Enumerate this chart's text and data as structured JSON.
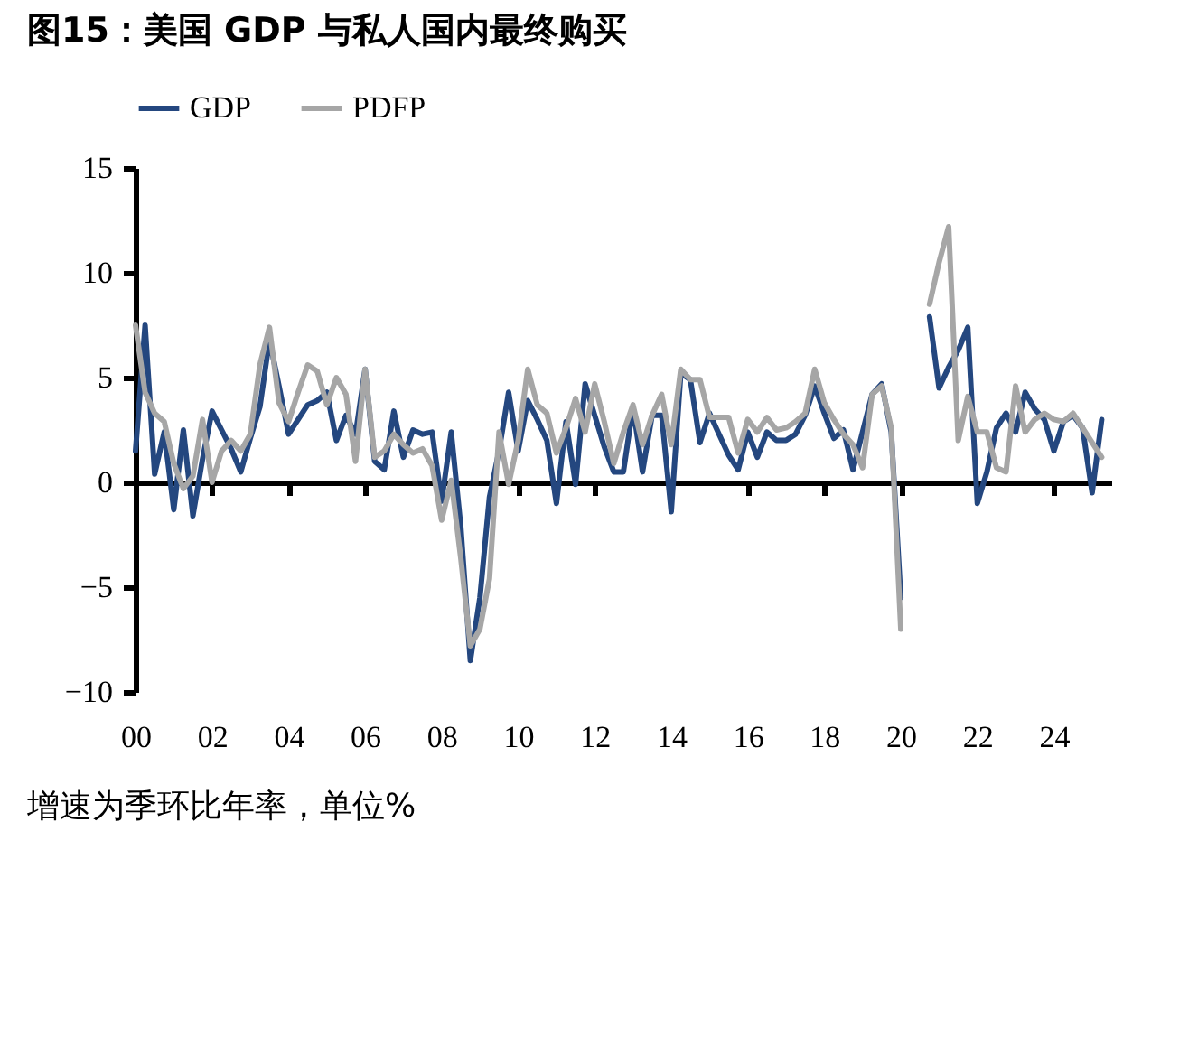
{
  "chart_data": {
    "type": "line",
    "title": "图15：美国 GDP 与私人国内最终购买",
    "annotations": [
      "增速为季环比年率，单位%"
    ],
    "x": [
      2000,
      2000.25,
      2000.5,
      2000.75,
      2001,
      2001.25,
      2001.5,
      2001.75,
      2002,
      2002.25,
      2002.5,
      2002.75,
      2003,
      2003.25,
      2003.5,
      2003.75,
      2004,
      2004.25,
      2004.5,
      2004.75,
      2005,
      2005.25,
      2005.5,
      2005.75,
      2006,
      2006.25,
      2006.5,
      2006.75,
      2007,
      2007.25,
      2007.5,
      2007.75,
      2008,
      2008.25,
      2008.5,
      2008.75,
      2009,
      2009.25,
      2009.5,
      2009.75,
      2010,
      2010.25,
      2010.5,
      2010.75,
      2011,
      2011.25,
      2011.5,
      2011.75,
      2012,
      2012.25,
      2012.5,
      2012.75,
      2013,
      2013.25,
      2013.5,
      2013.75,
      2014,
      2014.25,
      2014.5,
      2014.75,
      2015,
      2015.25,
      2015.5,
      2015.75,
      2016,
      2016.25,
      2016.5,
      2016.75,
      2017,
      2017.25,
      2017.5,
      2017.75,
      2018,
      2018.25,
      2018.5,
      2018.75,
      2019,
      2019.25,
      2019.5,
      2019.75,
      2020,
      2020.25,
      2020.5,
      2020.75,
      2021,
      2021.25,
      2021.5,
      2021.75,
      2022,
      2022.25,
      2022.5,
      2022.75,
      2023,
      2023.25,
      2023.5,
      2023.75,
      2024,
      2024.25,
      2024.5,
      2024.75,
      2025,
      2025.25
    ],
    "series": [
      {
        "name": "GDP",
        "color": "#24477f",
        "values": [
          1.5,
          7.5,
          0.4,
          2.4,
          -1.3,
          2.5,
          -1.6,
          1.1,
          3.4,
          2.5,
          1.6,
          0.5,
          2.1,
          3.6,
          6.8,
          4.6,
          2.3,
          3.0,
          3.7,
          3.9,
          4.3,
          2.0,
          3.2,
          2.3,
          5.4,
          1.0,
          0.6,
          3.4,
          1.2,
          2.5,
          2.3,
          2.4,
          -0.9,
          2.4,
          -2.1,
          -8.5,
          -5.5,
          -0.7,
          1.5,
          4.3,
          1.5,
          3.9,
          3.0,
          2.0,
          -1.0,
          2.9,
          -0.1,
          4.7,
          3.2,
          1.7,
          0.5,
          0.5,
          3.6,
          0.5,
          3.2,
          3.2,
          -1.4,
          5.2,
          4.9,
          1.9,
          3.3,
          2.3,
          1.3,
          0.6,
          2.4,
          1.2,
          2.4,
          2.0,
          2.0,
          2.3,
          3.2,
          4.6,
          3.3,
          2.1,
          2.5,
          0.6,
          2.4,
          4.2,
          4.7,
          2.4,
          -5.5,
          null,
          null,
          7.9,
          4.5,
          5.5,
          6.3,
          7.4,
          -1.0,
          0.5,
          2.6,
          3.3,
          2.4,
          4.3,
          3.5,
          3.0,
          1.5,
          2.9,
          3.2,
          2.6,
          -0.5,
          3.0
        ]
      },
      {
        "name": "PDFP",
        "color": "#a6a6a6",
        "values": [
          7.5,
          4.3,
          3.3,
          2.9,
          0.9,
          -0.3,
          0.3,
          3.0,
          0.0,
          1.5,
          2.0,
          1.5,
          2.3,
          5.6,
          7.4,
          3.8,
          2.9,
          4.3,
          5.6,
          5.3,
          3.7,
          5.0,
          4.2,
          1.0,
          5.4,
          1.2,
          1.5,
          2.3,
          1.8,
          1.4,
          1.6,
          0.8,
          -1.8,
          0.1,
          -3.6,
          -7.8,
          -7.0,
          -4.6,
          2.4,
          -0.1,
          2.0,
          5.4,
          3.7,
          3.3,
          1.4,
          2.6,
          4.0,
          2.4,
          4.7,
          2.9,
          0.9,
          2.4,
          3.7,
          1.8,
          3.2,
          4.2,
          1.8,
          5.4,
          4.9,
          4.9,
          3.1,
          3.1,
          3.1,
          1.4,
          3.0,
          2.4,
          3.1,
          2.5,
          2.6,
          2.9,
          3.3,
          5.4,
          3.8,
          3.0,
          2.3,
          1.8,
          0.7,
          4.2,
          4.6,
          2.6,
          -7.0,
          null,
          null,
          8.5,
          10.5,
          12.2,
          2.0,
          4.1,
          2.4,
          2.4,
          0.7,
          0.5,
          4.6,
          2.4,
          3.0,
          3.3,
          3.0,
          2.9,
          3.3,
          2.6,
          1.9,
          1.2
        ]
      }
    ],
    "xlim": [
      2000,
      2025.5
    ],
    "xticks": [
      {
        "value": 2000,
        "label": "00"
      },
      {
        "value": 2002,
        "label": "02"
      },
      {
        "value": 2004,
        "label": "04"
      },
      {
        "value": 2006,
        "label": "06"
      },
      {
        "value": 2008,
        "label": "08"
      },
      {
        "value": 2010,
        "label": "10"
      },
      {
        "value": 2012,
        "label": "12"
      },
      {
        "value": 2014,
        "label": "14"
      },
      {
        "value": 2016,
        "label": "16"
      },
      {
        "value": 2018,
        "label": "18"
      },
      {
        "value": 2020,
        "label": "20"
      },
      {
        "value": 2022,
        "label": "22"
      },
      {
        "value": 2024,
        "label": "24"
      }
    ],
    "ylim": [
      -10,
      15
    ],
    "yticks": [
      -10,
      -5,
      0,
      5,
      10,
      15
    ],
    "legend": "top",
    "marker": "none",
    "line_style": "solid"
  }
}
